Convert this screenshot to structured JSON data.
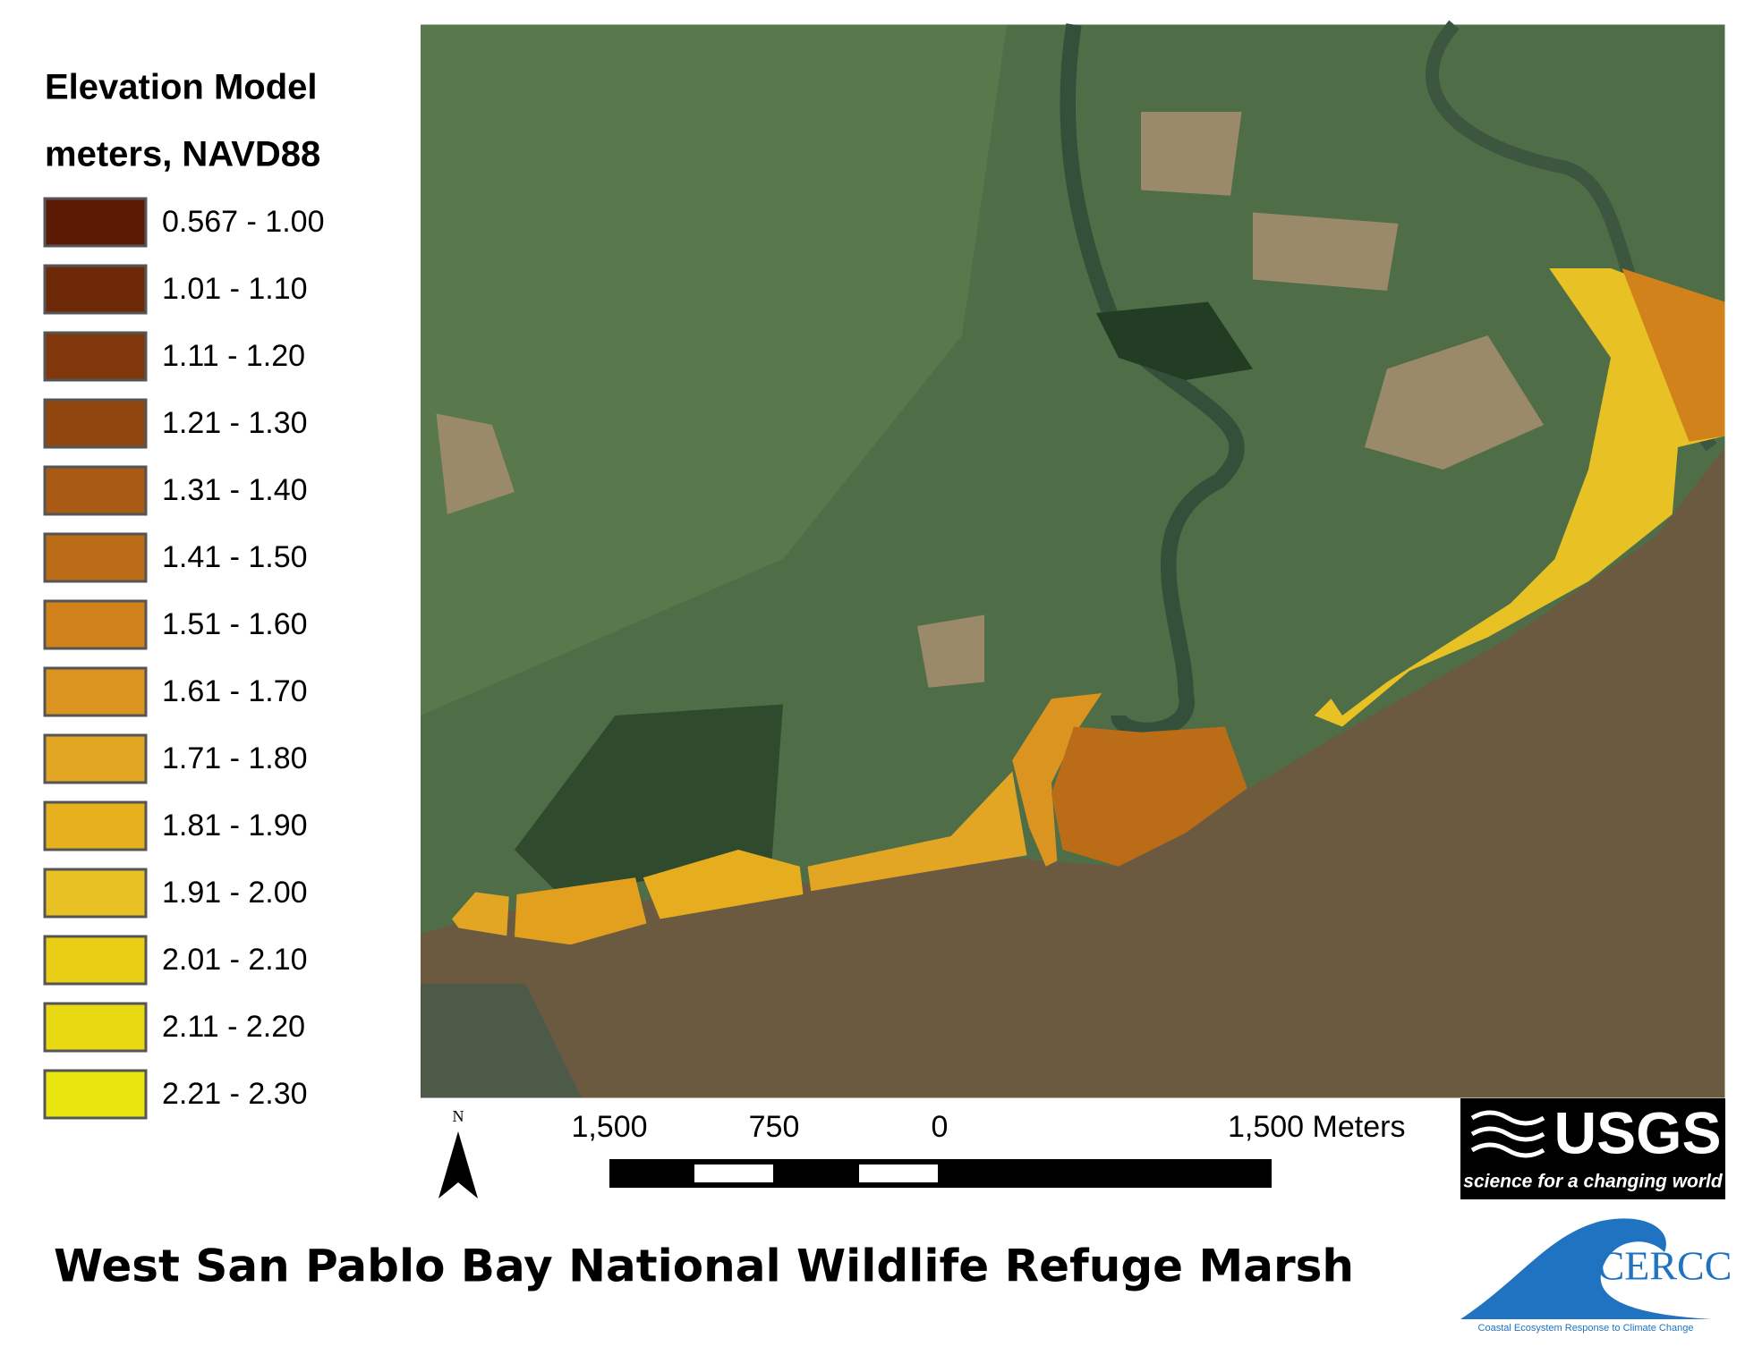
{
  "legend": {
    "title": "Elevation Model",
    "subtitle": "meters, NAVD88",
    "items": [
      {
        "label": "0.567 - 1.00",
        "color": "#5a1a04"
      },
      {
        "label": "1.01 - 1.10",
        "color": "#6e2a08"
      },
      {
        "label": "1.11 - 1.20",
        "color": "#80370b"
      },
      {
        "label": "1.21 - 1.30",
        "color": "#91460e"
      },
      {
        "label": "1.31 - 1.40",
        "color": "#a85a14"
      },
      {
        "label": "1.41 - 1.50",
        "color": "#bb6c17"
      },
      {
        "label": "1.51 - 1.60",
        "color": "#d1821b"
      },
      {
        "label": "1.61 - 1.70",
        "color": "#dc9420"
      },
      {
        "label": "1.71 - 1.80",
        "color": "#e3a624"
      },
      {
        "label": "1.81 - 1.90",
        "color": "#e6b11c"
      },
      {
        "label": "1.91 - 2.00",
        "color": "#e8c124"
      },
      {
        "label": "2.01 - 2.10",
        "color": "#e8ce14"
      },
      {
        "label": "2.11 - 2.20",
        "color": "#e8d913"
      },
      {
        "label": "2.21 - 2.30",
        "color": "#e8e60e"
      }
    ]
  },
  "scale_bar": {
    "labels": [
      "1,500",
      "750",
      "0",
      "1,500 Meters"
    ]
  },
  "north": "N",
  "title": "West San Pablo Bay National Wildlife Refuge Marsh",
  "logos": {
    "usgs": {
      "name": "USGS",
      "tagline": "science for a changing world"
    },
    "cercc": {
      "name": "CERCC",
      "tagline": "Coastal Ecosystem Response to Climate Change"
    }
  }
}
